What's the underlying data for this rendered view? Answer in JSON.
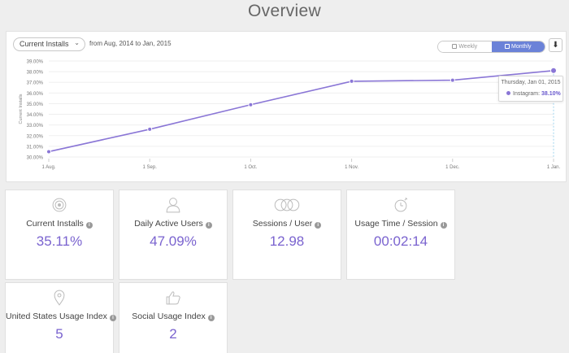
{
  "page": {
    "title": "Overview"
  },
  "chart_panel": {
    "metric_select": "Current Installs",
    "range_text": "from Aug, 2014 to Jan, 2015",
    "toggle": {
      "weekly": "Weekly",
      "monthly": "Monthly",
      "active": "monthly"
    },
    "download_icon": "download-icon"
  },
  "chart_data": {
    "type": "line",
    "ylabel": "Current Installs",
    "categories": [
      "1 Aug.",
      "1 Sep.",
      "1 Oct.",
      "1 Nov.",
      "1 Dec.",
      "1 Jan."
    ],
    "ylim": [
      30,
      39
    ],
    "yticks": [
      "30.00%",
      "31.00%",
      "32.00%",
      "33.00%",
      "34.00%",
      "35.00%",
      "36.00%",
      "37.00%",
      "38.00%",
      "39.00%"
    ],
    "series": [
      {
        "name": "Instagram",
        "color": "#8a76d6",
        "values": [
          30.5,
          32.6,
          34.9,
          37.1,
          37.2,
          38.1
        ]
      }
    ],
    "grid": true,
    "tooltip": {
      "date": "Thursday, Jan 01, 2015",
      "series": "Instagram",
      "value": "38.10%"
    }
  },
  "cards": [
    {
      "label": "Current Installs",
      "value": "35.11%",
      "icon": "target-icon"
    },
    {
      "label": "Daily Active Users",
      "value": "47.09%",
      "icon": "user-icon"
    },
    {
      "label": "Sessions / User",
      "value": "12.98",
      "icon": "sessions-icon"
    },
    {
      "label": "Usage Time / Session",
      "value": "00:02:14",
      "icon": "stopwatch-icon"
    },
    {
      "label": "United States Usage Index",
      "value": "5",
      "icon": "location-pin-icon"
    },
    {
      "label": "Social Usage Index",
      "value": "2",
      "icon": "thumbs-up-icon"
    }
  ],
  "colors": {
    "accent": "#7a63cf",
    "toggle_active": "#6b82d8",
    "line": "#8a76d6"
  }
}
